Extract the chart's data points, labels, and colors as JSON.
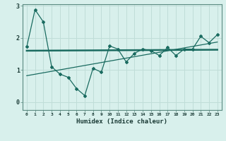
{
  "title": "",
  "xlabel": "Humidex (Indice chaleur)",
  "background_color": "#d8f0ec",
  "grid_color": "#c0ddd8",
  "line_color": "#1a6b60",
  "xlim": [
    -0.5,
    23.5
  ],
  "ylim": [
    -0.25,
    3.05
  ],
  "yticks": [
    0,
    1,
    2,
    3
  ],
  "xticks": [
    0,
    1,
    2,
    3,
    4,
    5,
    6,
    7,
    8,
    9,
    10,
    11,
    12,
    13,
    14,
    15,
    16,
    17,
    18,
    19,
    20,
    21,
    22,
    23
  ],
  "series1_x": [
    0,
    1,
    2,
    3,
    4,
    5,
    6,
    7,
    8,
    9,
    10,
    11,
    12,
    13,
    14,
    15,
    16,
    17,
    18,
    19,
    20,
    21,
    22,
    23
  ],
  "series1_y": [
    1.72,
    2.88,
    2.5,
    1.1,
    0.87,
    0.77,
    0.42,
    0.2,
    1.05,
    0.93,
    1.75,
    1.65,
    1.25,
    1.52,
    1.65,
    1.6,
    1.45,
    1.7,
    1.45,
    1.65,
    1.65,
    2.05,
    1.85,
    2.1
  ],
  "series2_x": [
    0,
    23
  ],
  "series2_y": [
    1.6,
    1.63
  ],
  "series3_x": [
    0,
    23
  ],
  "series3_y": [
    0.82,
    1.87
  ],
  "marker": "D",
  "marker_size": 2.0
}
